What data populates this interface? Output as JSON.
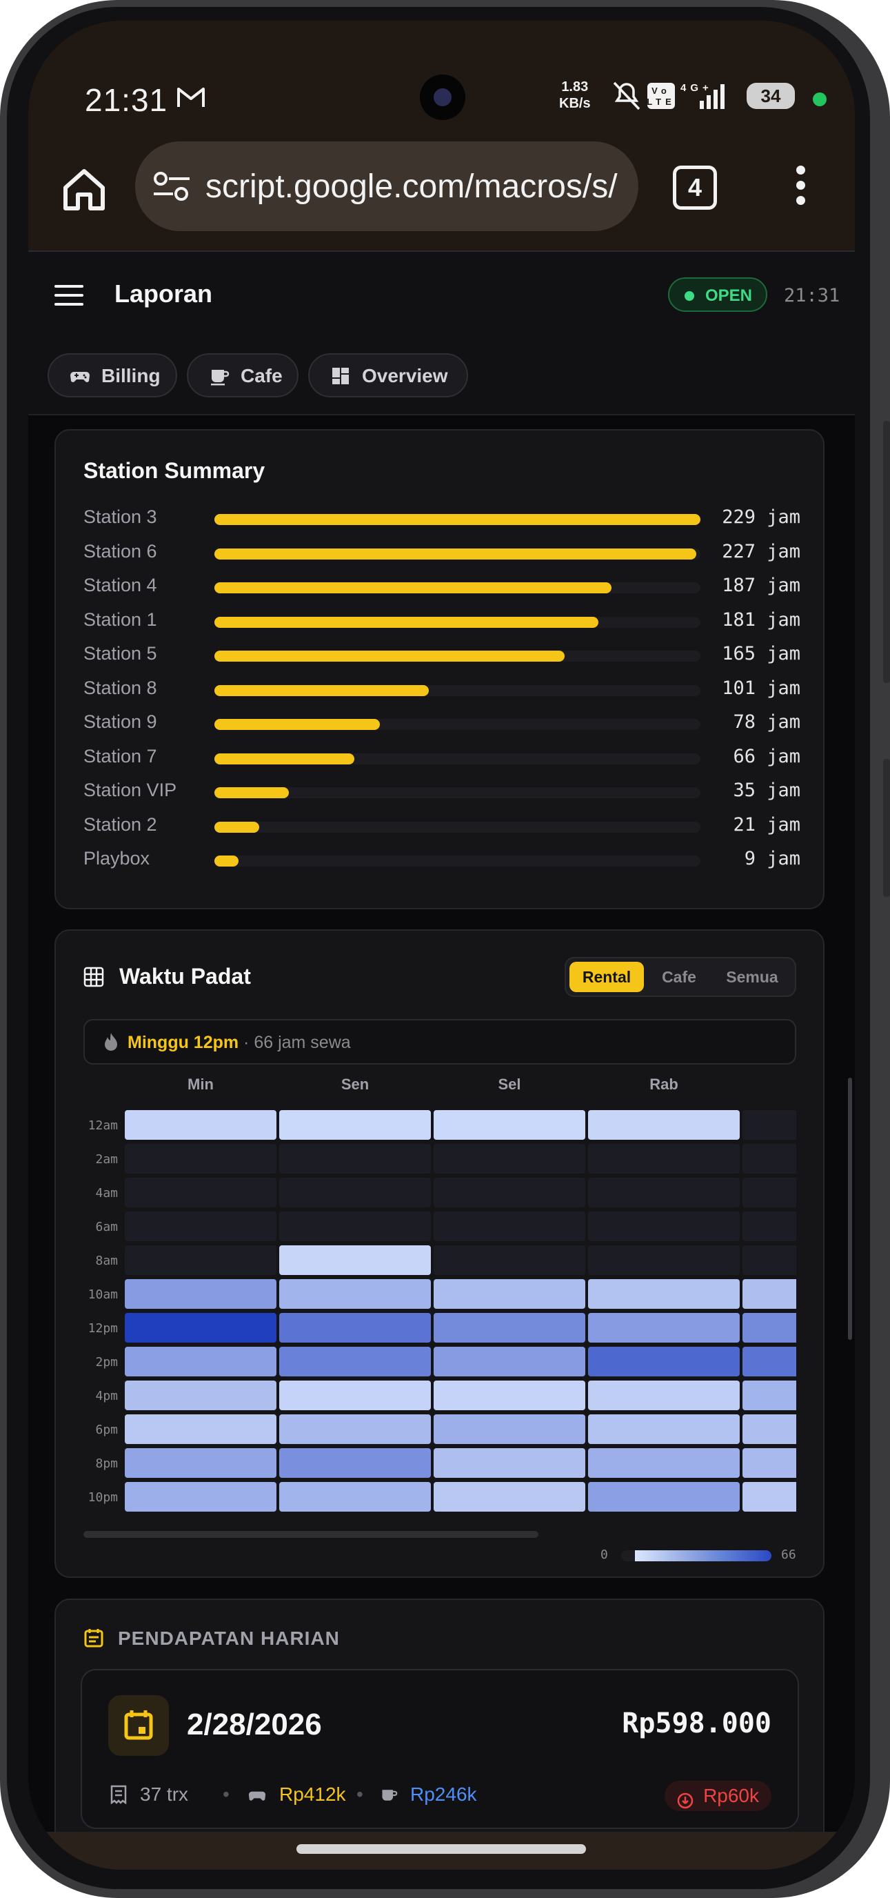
{
  "status_bar": {
    "time": "21:31",
    "net_speed_line1": "1.83",
    "net_speed_line2": "KB/s",
    "network": "4G+",
    "volte": "Vo LTE",
    "battery": "34"
  },
  "browser": {
    "url": "script.google.com/macros/s/",
    "tab_count": "4"
  },
  "header": {
    "title": "Laporan",
    "status": "OPEN",
    "time": "21:31"
  },
  "tabs": [
    {
      "label": "Billing",
      "icon": "gamepad-icon"
    },
    {
      "label": "Cafe",
      "icon": "coffee-icon"
    },
    {
      "label": "Overview",
      "icon": "dashboard-icon"
    }
  ],
  "station_summary": {
    "title": "Station Summary",
    "unit": "jam",
    "max": 229,
    "items": [
      {
        "name": "Station 3",
        "hours": 229,
        "display": "229 jam"
      },
      {
        "name": "Station 6",
        "hours": 227,
        "display": "227 jam"
      },
      {
        "name": "Station 4",
        "hours": 187,
        "display": "187 jam"
      },
      {
        "name": "Station 1",
        "hours": 181,
        "display": "181 jam"
      },
      {
        "name": "Station 5",
        "hours": 165,
        "display": "165 jam"
      },
      {
        "name": "Station 8",
        "hours": 101,
        "display": "101 jam"
      },
      {
        "name": "Station 9",
        "hours": 78,
        "display": "78 jam"
      },
      {
        "name": "Station 7",
        "hours": 66,
        "display": "66 jam"
      },
      {
        "name": "Station VIP",
        "hours": 35,
        "display": "35 jam"
      },
      {
        "name": "Station 2",
        "hours": 21,
        "display": "21 jam"
      },
      {
        "name": "Playbox",
        "hours": 9,
        "display": "9 jam"
      }
    ]
  },
  "heatmap": {
    "title": "Waktu Padat",
    "filters": [
      "Rental",
      "Cafe",
      "Semua"
    ],
    "active_filter": "Rental",
    "peak_label": "Minggu 12pm",
    "peak_sub": " · 66 jam sewa",
    "days": [
      "Min",
      "Sen",
      "Sel",
      "Rab",
      ""
    ],
    "hours": [
      "12am",
      "2am",
      "4am",
      "6am",
      "8am",
      "10am",
      "12pm",
      "2pm",
      "4pm",
      "6pm",
      "8pm",
      "10pm"
    ],
    "values": [
      [
        8,
        6,
        6,
        7,
        0
      ],
      [
        0,
        0,
        0,
        0,
        0
      ],
      [
        0,
        0,
        0,
        0,
        0
      ],
      [
        0,
        0,
        0,
        0,
        0
      ],
      [
        0,
        7,
        0,
        0,
        0
      ],
      [
        30,
        20,
        17,
        14,
        16
      ],
      [
        66,
        45,
        36,
        30,
        36
      ],
      [
        28,
        40,
        30,
        50,
        45
      ],
      [
        16,
        8,
        8,
        10,
        20
      ],
      [
        12,
        18,
        22,
        14,
        16
      ],
      [
        26,
        34,
        16,
        22,
        18
      ],
      [
        22,
        20,
        12,
        28,
        12
      ]
    ],
    "legend_min": "0",
    "legend_max": "66"
  },
  "daily_revenue": {
    "title": "PENDAPATAN HARIAN",
    "date": "2/28/2026",
    "total": "Rp598.000",
    "trx": "37 trx",
    "rental": "Rp412k",
    "cafe": "Rp246k",
    "expense": "Rp60k"
  },
  "colors": {
    "accent": "#f5c518",
    "open": "#3ddc84",
    "cafe": "#4f8ff7",
    "expense": "#ef4444",
    "heat_low": "#dbe7ff",
    "heat_high": "#1f3fbf"
  }
}
